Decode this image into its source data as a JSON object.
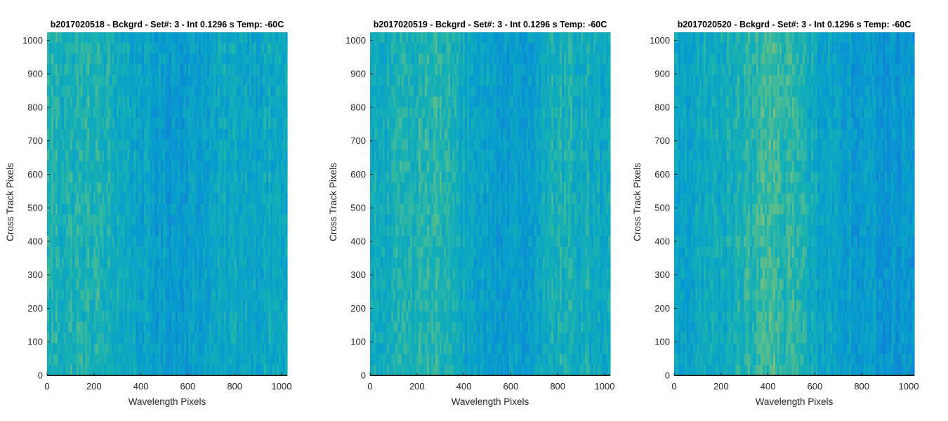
{
  "chart_data": [
    {
      "type": "heatmap",
      "title": "b2017020518 - Bckgrd - Set#: 3 - Int 0.1296 s Temp: -60C",
      "xlabel": "Wavelength Pixels",
      "ylabel": "Cross Track Pixels",
      "xlim": [
        0,
        1024
      ],
      "ylim": [
        0,
        1024
      ],
      "xticks": [
        0,
        200,
        400,
        600,
        800,
        1000
      ],
      "yticks": [
        0,
        100,
        200,
        300,
        400,
        500,
        600,
        700,
        800,
        900,
        1000
      ],
      "colormap": "parula",
      "column_profile": {
        "x": [
          0,
          100,
          200,
          300,
          400,
          500,
          600,
          700,
          800,
          900,
          1024
        ],
        "relative_level": [
          0.62,
          0.6,
          0.62,
          0.55,
          0.45,
          0.38,
          0.4,
          0.45,
          0.5,
          0.48,
          0.5
        ]
      }
    },
    {
      "type": "heatmap",
      "title": "b2017020519 - Bckgrd - Set#: 3 - Int 0.1296 s Temp: -60C",
      "xlabel": "Wavelength Pixels",
      "ylabel": "Cross Track Pixels",
      "xlim": [
        0,
        1024
      ],
      "ylim": [
        0,
        1024
      ],
      "xticks": [
        0,
        200,
        400,
        600,
        800,
        1000
      ],
      "yticks": [
        0,
        100,
        200,
        300,
        400,
        500,
        600,
        700,
        800,
        900,
        1000
      ],
      "colormap": "parula",
      "column_profile": {
        "x": [
          0,
          100,
          200,
          300,
          400,
          500,
          600,
          700,
          800,
          900,
          1024
        ],
        "relative_level": [
          0.5,
          0.55,
          0.66,
          0.64,
          0.5,
          0.42,
          0.38,
          0.45,
          0.6,
          0.55,
          0.52
        ]
      }
    },
    {
      "type": "heatmap",
      "title": "b2017020520 - Bckgrd - Set#: 3 - Int 0.1296 s Temp: -60C",
      "xlabel": "Wavelength Pixels",
      "ylabel": "Cross Track Pixels",
      "xlim": [
        0,
        1024
      ],
      "ylim": [
        0,
        1024
      ],
      "xticks": [
        0,
        200,
        400,
        600,
        800,
        1000
      ],
      "yticks": [
        0,
        100,
        200,
        300,
        400,
        500,
        600,
        700,
        800,
        900,
        1000
      ],
      "colormap": "parula",
      "column_profile": {
        "x": [
          0,
          100,
          200,
          300,
          400,
          500,
          600,
          700,
          800,
          900,
          1024
        ],
        "relative_level": [
          0.45,
          0.48,
          0.52,
          0.62,
          0.72,
          0.68,
          0.5,
          0.45,
          0.38,
          0.32,
          0.35
        ]
      }
    }
  ]
}
